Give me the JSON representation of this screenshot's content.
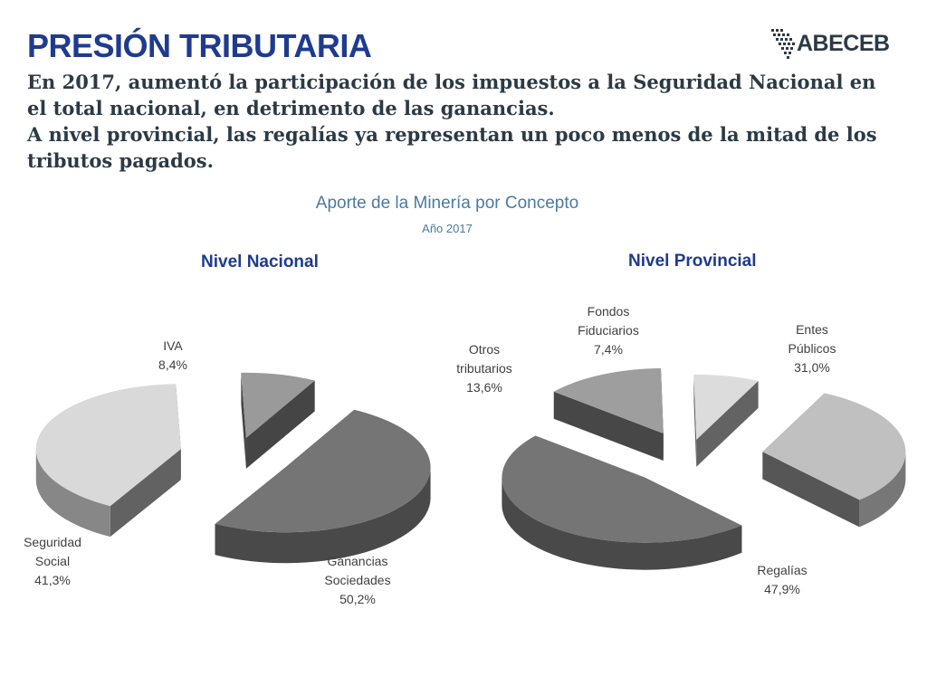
{
  "header": {
    "title": "PRESIÓN TRIBUTARIA",
    "lines": [
      "En 2017, aumentó la participación de los impuestos a la Seguridad Nacional en el total nacional, en detrimento de las ganancias.",
      "A nivel provincial, las regalías ya representan un poco menos de la mitad de los tributos pagados."
    ],
    "logo_text": "ABECEB"
  },
  "chart_data": [
    {
      "type": "pie",
      "title": "Aporte de la Minería por Concepto",
      "subtitle": "Año 2017",
      "panel_title": "Nivel Nacional",
      "slices": [
        {
          "label": [
            "IVA"
          ],
          "value": 8.4,
          "display": "8,4%",
          "color": "#9a9a9a"
        },
        {
          "label": [
            "Ganancias",
            "Sociedades"
          ],
          "value": 50.2,
          "display": "50,2%",
          "color": "#757575"
        },
        {
          "label": [
            "Seguridad",
            "Social"
          ],
          "value": 41.3,
          "display": "41,3%",
          "color": "#d9d9d9"
        }
      ]
    },
    {
      "type": "pie",
      "panel_title": "Nivel Provincial",
      "slices": [
        {
          "label": [
            "Fondos",
            "Fiduciarios"
          ],
          "value": 7.4,
          "display": "7,4%",
          "color": "#dcdcdc"
        },
        {
          "label": [
            "Entes",
            "Públicos"
          ],
          "value": 31.0,
          "display": "31,0%",
          "color": "#c0c0c0"
        },
        {
          "label": [
            "Regalías"
          ],
          "value": 47.9,
          "display": "47,9%",
          "color": "#757575"
        },
        {
          "label": [
            "Otros",
            "tributarios"
          ],
          "value": 13.6,
          "display": "13,6%",
          "color": "#9e9e9e"
        }
      ]
    }
  ]
}
